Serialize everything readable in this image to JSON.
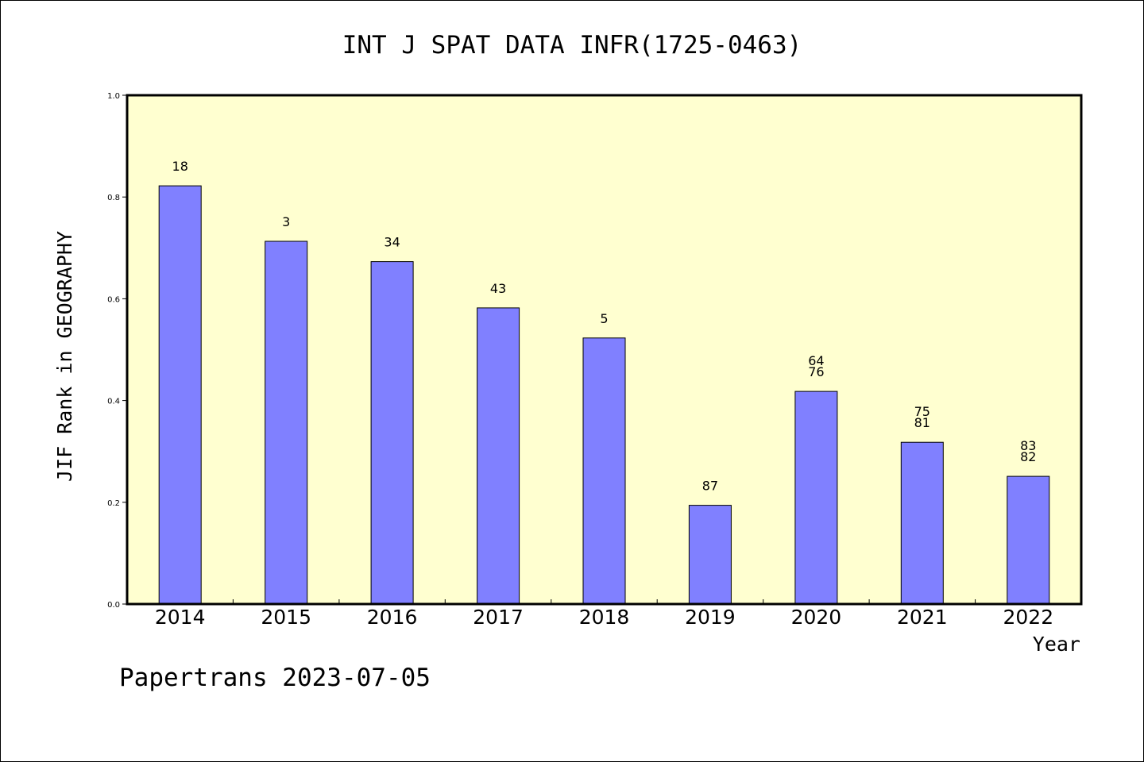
{
  "chart_data": {
    "type": "bar",
    "title": "INT J SPAT DATA INFR(1725-0463)",
    "xlabel": "Year",
    "ylabel": "JIF Rank in GEOGRAPHY",
    "ylim": [
      0,
      1.0
    ],
    "yticks": [
      "0.0",
      "0.2",
      "0.4",
      "0.6",
      "0.8",
      "1.0"
    ],
    "categories": [
      "2014",
      "2015",
      "2016",
      "2017",
      "2018",
      "2019",
      "2020",
      "2021",
      "2022"
    ],
    "values": [
      0.822,
      0.713,
      0.673,
      0.582,
      0.523,
      0.194,
      0.418,
      0.318,
      0.251
    ],
    "labels": [
      [
        "18"
      ],
      [
        "3"
      ],
      [
        "34"
      ],
      [
        "43"
      ],
      [
        "5"
      ],
      [
        "87"
      ],
      [
        "64",
        "76"
      ],
      [
        "75",
        "81"
      ],
      [
        "83",
        "82"
      ]
    ],
    "bar_color": "#8080ff",
    "background_color": "#ffffd0",
    "grid": false
  },
  "footer": {
    "text": "Papertrans 2023-07-05"
  }
}
